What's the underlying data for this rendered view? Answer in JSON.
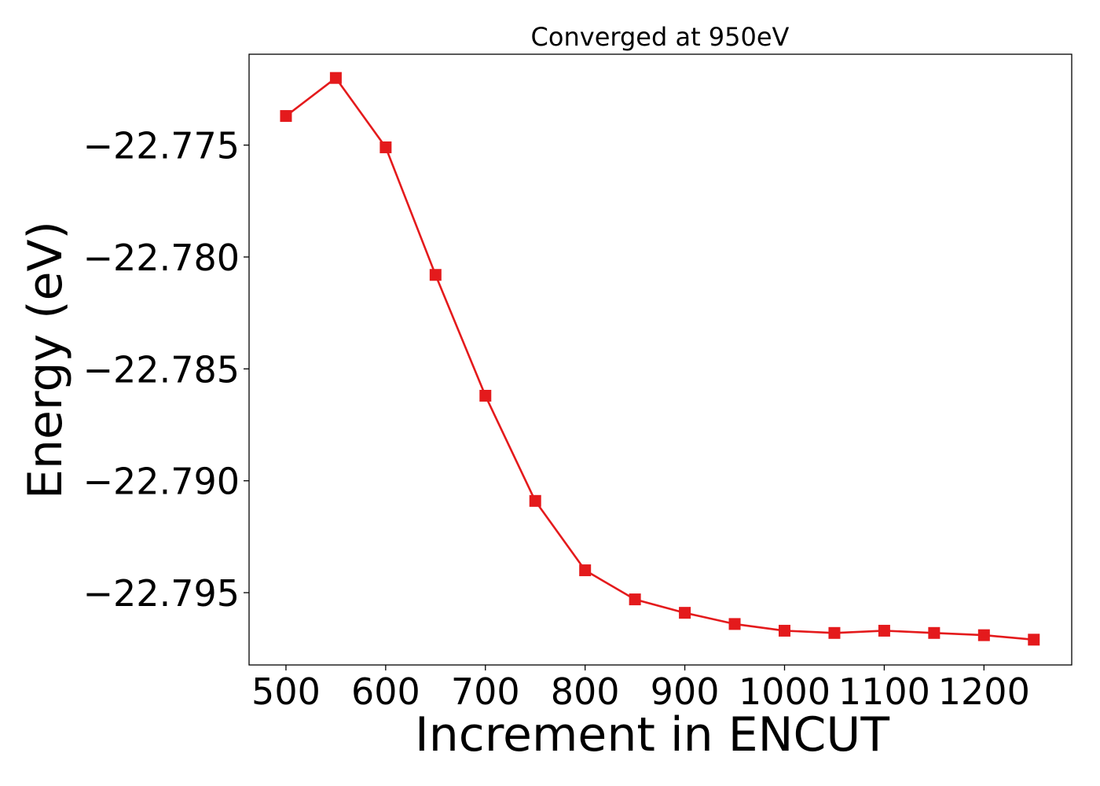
{
  "chart_data": {
    "type": "line",
    "title": "Converged at 950eV",
    "xlabel": "Increment in ENCUT",
    "ylabel": "Energy (eV)",
    "xlim": [
      463,
      1288
    ],
    "ylim": [
      -22.79823,
      -22.77094
    ],
    "xticks": [
      500,
      600,
      700,
      800,
      900,
      1000,
      1100,
      1200
    ],
    "xtick_labels": [
      "500",
      "600",
      "700",
      "800",
      "900",
      "1000",
      "1100",
      "1200"
    ],
    "yticks": [
      -22.775,
      -22.78,
      -22.785,
      -22.79,
      -22.795
    ],
    "ytick_labels": [
      "−22.775",
      "−22.780",
      "−22.785",
      "−22.790",
      "−22.795"
    ],
    "grid": false,
    "series": [
      {
        "color": "#e41a1c",
        "marker": "square",
        "x": [
          500,
          550,
          600,
          650,
          700,
          750,
          800,
          850,
          900,
          950,
          1000,
          1050,
          1100,
          1150,
          1200,
          1250
        ],
        "y": [
          -22.7737,
          -22.772,
          -22.7751,
          -22.7808,
          -22.7862,
          -22.7909,
          -22.794,
          -22.7953,
          -22.7959,
          -22.7964,
          -22.7967,
          -22.7968,
          -22.7967,
          -22.7968,
          -22.7969,
          -22.7971
        ]
      }
    ]
  }
}
